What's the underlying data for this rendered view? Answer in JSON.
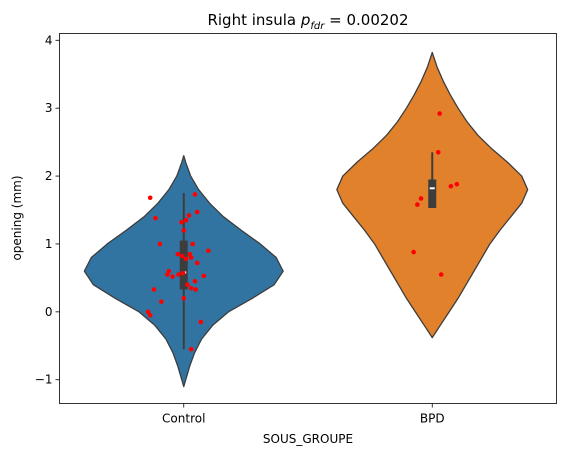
{
  "chart_data": {
    "type": "violin",
    "title_prefix": "Right insula ",
    "title_symbol": "p",
    "title_subscript": "fdr",
    "title_suffix": " = 0.00202",
    "xlabel": "SOUS_GROUPE",
    "ylabel": "opening (mm)",
    "ylim": [
      -1.35,
      4.1
    ],
    "yticks": [
      -1,
      0,
      1,
      2,
      3,
      4
    ],
    "ytick_labels": [
      "−1",
      "0",
      "1",
      "2",
      "3",
      "4"
    ],
    "categories": [
      "Control",
      "BPD"
    ],
    "series": [
      {
        "category": "Control",
        "color": "#3274a1",
        "violin_range": [
          -1.1,
          2.3
        ],
        "density": [
          [
            -1.1,
            0.0
          ],
          [
            -1.0,
            0.02
          ],
          [
            -0.8,
            0.06
          ],
          [
            -0.6,
            0.11
          ],
          [
            -0.4,
            0.18
          ],
          [
            -0.2,
            0.29
          ],
          [
            0.0,
            0.45
          ],
          [
            0.2,
            0.69
          ],
          [
            0.4,
            0.91
          ],
          [
            0.6,
            1.0
          ],
          [
            0.8,
            0.93
          ],
          [
            1.0,
            0.77
          ],
          [
            1.2,
            0.58
          ],
          [
            1.4,
            0.4
          ],
          [
            1.6,
            0.26
          ],
          [
            1.8,
            0.15
          ],
          [
            2.0,
            0.07
          ],
          [
            2.2,
            0.02
          ],
          [
            2.3,
            0.0
          ]
        ],
        "box": {
          "q1": 0.33,
          "median": 0.58,
          "q3": 1.05,
          "whisker_low": -0.55,
          "whisker_high": 1.75
        },
        "points": [
          [
            1.73,
            0.15
          ],
          [
            1.68,
            -0.45
          ],
          [
            1.47,
            0.18
          ],
          [
            1.42,
            0.07
          ],
          [
            1.38,
            -0.38
          ],
          [
            1.35,
            0.03
          ],
          [
            1.32,
            -0.03
          ],
          [
            1.2,
            0.0
          ],
          [
            1.0,
            -0.32
          ],
          [
            1.0,
            0.12
          ],
          [
            0.9,
            0.33
          ],
          [
            0.85,
            0.08
          ],
          [
            0.85,
            -0.08
          ],
          [
            0.82,
            -0.02
          ],
          [
            0.8,
            0.1
          ],
          [
            0.78,
            0.03
          ],
          [
            0.72,
            0.18
          ],
          [
            0.6,
            -0.2
          ],
          [
            0.57,
            -0.01
          ],
          [
            0.55,
            -0.22
          ],
          [
            0.55,
            -0.07
          ],
          [
            0.53,
            0.27
          ],
          [
            0.52,
            -0.15
          ],
          [
            0.45,
            0.15
          ],
          [
            0.4,
            0.05
          ],
          [
            0.35,
            0.1
          ],
          [
            0.33,
            0.16
          ],
          [
            0.33,
            -0.4
          ],
          [
            0.2,
            0.0
          ],
          [
            0.15,
            -0.3
          ],
          [
            0.0,
            -0.48
          ],
          [
            -0.05,
            -0.45
          ],
          [
            -0.15,
            0.23
          ],
          [
            -0.55,
            0.1
          ]
        ]
      },
      {
        "category": "BPD",
        "color": "#e1812c",
        "violin_range": [
          -0.38,
          3.82
        ],
        "density": [
          [
            -0.38,
            0.0
          ],
          [
            -0.2,
            0.08
          ],
          [
            0.0,
            0.17
          ],
          [
            0.2,
            0.26
          ],
          [
            0.4,
            0.34
          ],
          [
            0.6,
            0.42
          ],
          [
            0.8,
            0.5
          ],
          [
            1.0,
            0.58
          ],
          [
            1.2,
            0.68
          ],
          [
            1.4,
            0.79
          ],
          [
            1.6,
            0.9
          ],
          [
            1.8,
            0.96
          ],
          [
            2.0,
            0.9
          ],
          [
            2.2,
            0.76
          ],
          [
            2.4,
            0.6
          ],
          [
            2.6,
            0.46
          ],
          [
            2.8,
            0.35
          ],
          [
            3.0,
            0.26
          ],
          [
            3.2,
            0.18
          ],
          [
            3.4,
            0.11
          ],
          [
            3.6,
            0.05
          ],
          [
            3.82,
            0.0
          ]
        ],
        "box": {
          "q1": 1.53,
          "median": 1.82,
          "q3": 1.95,
          "whisker_low": 1.53,
          "whisker_high": 2.35
        },
        "points": [
          [
            2.92,
            0.1
          ],
          [
            2.35,
            0.08
          ],
          [
            1.88,
            0.33
          ],
          [
            1.85,
            0.25
          ],
          [
            1.67,
            -0.15
          ],
          [
            1.58,
            -0.2
          ],
          [
            0.88,
            -0.25
          ],
          [
            0.55,
            0.12
          ]
        ]
      }
    ]
  }
}
